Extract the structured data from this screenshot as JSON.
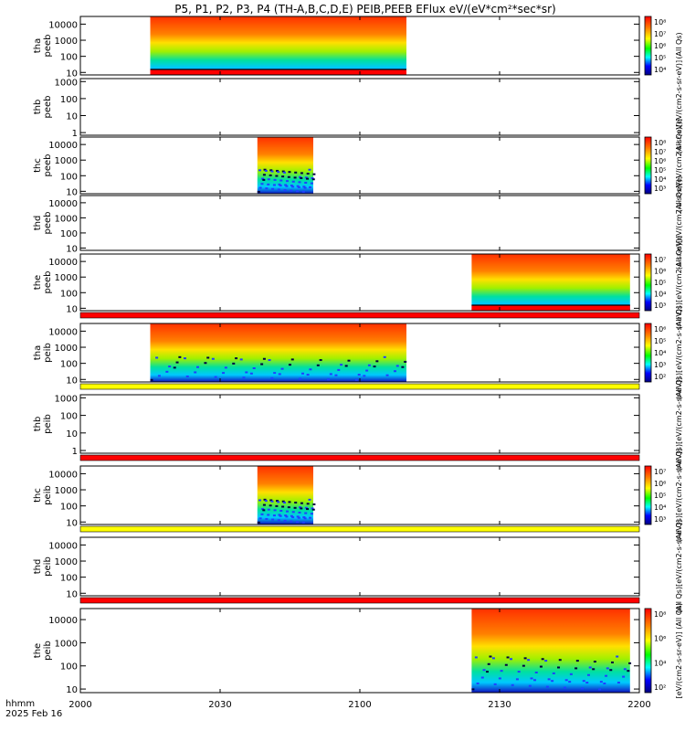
{
  "chart_data": {
    "type": "heatmap",
    "title": "P5, P1, P2, P3, P4 (TH-A,B,C,D,E) PEIB,PEEB EFlux eV/(eV*cm²*sec*sr)",
    "date_label": "2025 Feb 16",
    "time_label": "hhmm",
    "x_ticks": [
      "2000",
      "2030",
      "2100",
      "2130",
      "2200"
    ],
    "x_tick_minutes": [
      0,
      30,
      60,
      90,
      120
    ],
    "xlim_minutes": [
      0,
      120
    ],
    "panels": [
      {
        "probe": "tha",
        "product": "peeb",
        "ylabel": "tha\npeeb",
        "yticks": [
          "10",
          "100",
          "1000",
          "10000"
        ],
        "ylim": [
          7,
          30000
        ],
        "coverage_minutes": [
          15,
          70
        ],
        "cbar_ticks": [
          "10⁸",
          "10⁷",
          "10⁶",
          "10⁵",
          "10⁴"
        ],
        "cbar_label": "(All Qs)"
      },
      {
        "probe": "thb",
        "product": "peeb",
        "ylabel": "thb\npeeb",
        "yticks": [
          "1",
          "10",
          "100",
          "1000"
        ],
        "ylim": [
          0.7,
          1500
        ],
        "coverage_minutes": null,
        "cbar_ticks": [],
        "cbar_label": "(All Qs)[eV/(cm2-s-sr-eV)]"
      },
      {
        "probe": "thc",
        "product": "peeb",
        "ylabel": "thc\npeeb",
        "yticks": [
          "10",
          "100",
          "1000",
          "10000"
        ],
        "ylim": [
          7,
          30000
        ],
        "coverage_minutes": [
          38,
          50
        ],
        "cbar_ticks": [
          "10⁸",
          "10⁷",
          "10⁶",
          "10⁵",
          "10⁴",
          "10³"
        ],
        "cbar_label": "(All Qs)[eV/(cm2-s-sr-eV)]"
      },
      {
        "probe": "thd",
        "product": "peeb",
        "ylabel": "thd\npeeb",
        "yticks": [
          "10",
          "100",
          "1000",
          "10000"
        ],
        "ylim": [
          7,
          30000
        ],
        "coverage_minutes": null,
        "cbar_ticks": [],
        "cbar_label": "(All Qs)[eV/(cm2-s-sr-eV)]"
      },
      {
        "probe": "the",
        "product": "peeb",
        "ylabel": "the\npeeb",
        "yticks": [
          "10",
          "100",
          "1000",
          "10000"
        ],
        "ylim": [
          7,
          30000
        ],
        "coverage_minutes": [
          84,
          118
        ],
        "cbar_ticks": [
          "10⁷",
          "10⁶",
          "10⁵",
          "10⁴",
          "10³"
        ],
        "cbar_label": "(All Qs)[eV/(cm2-s-sr-eV)]"
      },
      {
        "probe": "tha",
        "product": "peib",
        "ylabel": "tha\npeib",
        "yticks": [
          "10",
          "100",
          "1000",
          "10000"
        ],
        "ylim": [
          7,
          30000
        ],
        "coverage_minutes": [
          15,
          70
        ],
        "cbar_ticks": [
          "10⁶",
          "10⁵",
          "10⁴",
          "10³",
          "10²"
        ],
        "cbar_label": "(All Qs)[eV/(cm2-s-sr-eV)]"
      },
      {
        "probe": "thb",
        "product": "peib",
        "ylabel": "thb\npeib",
        "yticks": [
          "1",
          "10",
          "100",
          "1000"
        ],
        "ylim": [
          0.7,
          1500
        ],
        "coverage_minutes": null,
        "cbar_ticks": [],
        "cbar_label": "(All Qs)[eV/(cm2-s-sr-eV)]"
      },
      {
        "probe": "thc",
        "product": "peib",
        "ylabel": "thc\npeib",
        "yticks": [
          "10",
          "100",
          "1000",
          "10000"
        ],
        "ylim": [
          7,
          30000
        ],
        "coverage_minutes": [
          38,
          50
        ],
        "cbar_ticks": [
          "10⁷",
          "10⁶",
          "10⁵",
          "10⁴",
          "10³"
        ],
        "cbar_label": "(All Qs)[eV/(cm2-s-sr-eV)]"
      },
      {
        "probe": "thd",
        "product": "peib",
        "ylabel": "thd\npeib",
        "yticks": [
          "10",
          "100",
          "1000",
          "10000"
        ],
        "ylim": [
          7,
          30000
        ],
        "coverage_minutes": null,
        "cbar_ticks": [],
        "cbar_label": "(All Qs)[eV/(cm2-s-sr-eV)]"
      },
      {
        "probe": "the",
        "product": "peib",
        "ylabel": "the\npeib",
        "yticks": [
          "10",
          "100",
          "1000",
          "10000"
        ],
        "ylim": [
          7,
          30000
        ],
        "coverage_minutes": [
          84,
          118
        ],
        "cbar_ticks": [
          "10⁸",
          "10⁶",
          "10⁴",
          "10²"
        ],
        "cbar_label": "[eV/(cm2-s-sr-eV)] (All Qs)"
      }
    ],
    "mode_bar_colors": [
      "#ff0000",
      "#ffff00"
    ]
  }
}
